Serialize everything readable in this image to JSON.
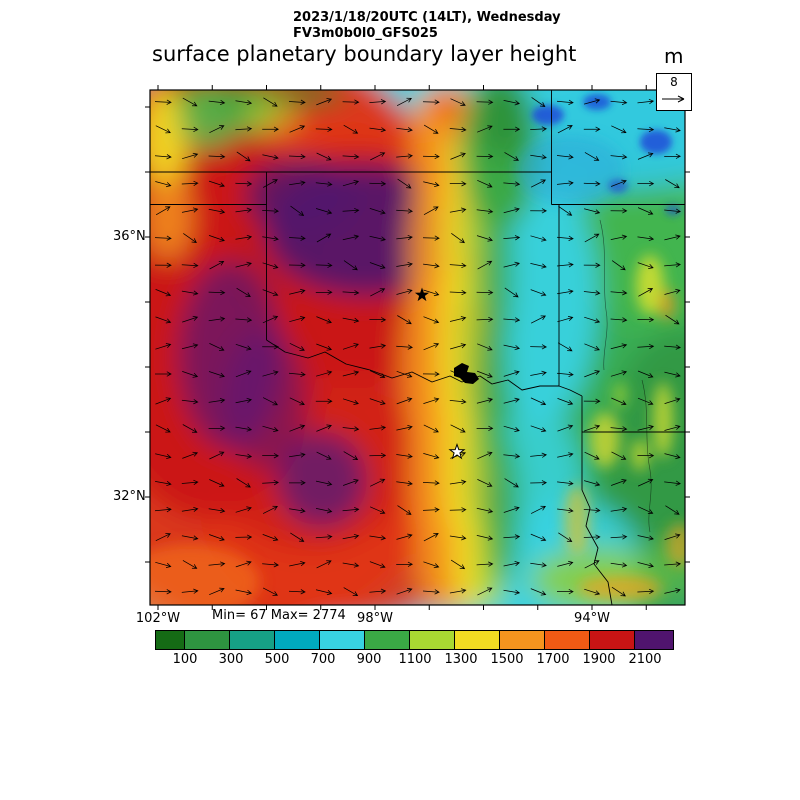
{
  "header": {
    "datetime_line": "2023/1/18/20UTC (14LT), Wednesday",
    "model_line": "FV3m0b0l0_GFS025",
    "title": "surface planetary boundary layer height",
    "units": "m"
  },
  "reference_vector": {
    "value": "8",
    "icon": "right-arrow-icon"
  },
  "axes": {
    "lat_labels": [
      {
        "text": "36°N"
      },
      {
        "text": "32°N"
      }
    ],
    "lon_labels": [
      {
        "text": "102°W"
      },
      {
        "text": "98°W"
      },
      {
        "text": "94°W"
      }
    ]
  },
  "stats": {
    "min_max": "Min= 67 Max= 2774"
  },
  "colorbar": {
    "labels": [
      "100",
      "300",
      "500",
      "700",
      "900",
      "1100",
      "1300",
      "1500",
      "1700",
      "1900",
      "2100"
    ],
    "colors": [
      "#156b15",
      "#2e9440",
      "#16a085",
      "#00aabe",
      "#38d2e2",
      "#3aa845",
      "#a8d832",
      "#f2dc22",
      "#f5941e",
      "#f05a14",
      "#c81414",
      "#50146e"
    ]
  },
  "chart_data": {
    "type": "heatmap",
    "title": "surface planetary boundary layer height",
    "units": "m",
    "datetime": "2023/1/18/20UTC (14LT), Wednesday",
    "model": "FV3m0b0l0_GFS025",
    "stat_min": 67,
    "stat_max": 2774,
    "contour_levels": [
      100,
      300,
      500,
      700,
      900,
      1100,
      1300,
      1500,
      1700,
      1900,
      2100
    ],
    "level_colors": [
      "#156b15",
      "#2e9440",
      "#16a085",
      "#00aabe",
      "#38d2e2",
      "#3aa845",
      "#a8d832",
      "#f2dc22",
      "#f5941e",
      "#f05a14",
      "#c81414",
      "#50146e"
    ],
    "x_ticks": [
      "102°W",
      "98°W",
      "94°W"
    ],
    "y_ticks": [
      "36°N",
      "32°N"
    ],
    "reference_vector": 8,
    "overlays": [
      "wind vector arrows across whole map",
      "state borders (TX, OK, KS, MO, AR, LA)",
      "Red River and Sabine River",
      "Lake Texoma (black water body)",
      "two star markers (central OK and north TX)"
    ],
    "field_summary": [
      {
        "region": "west Texas / TX panhandle / western Oklahoma",
        "pblh_m": "2100-2774 (purple maxima embedded in dark red)"
      },
      {
        "region": "northwest-central Texas and central Oklahoma",
        "pblh_m": "1500-2100 (orange to red)"
      },
      {
        "region": "north-south transition band near 97-98W",
        "pblh_m": "900-1500 (green-yellow-orange gradient)"
      },
      {
        "region": "eastern Oklahoma / east Texas / Arkansas border",
        "pblh_m": "300-1100 (cyan and green)"
      },
      {
        "region": "far northeast corner (Missouri/Arkansas)",
        "pblh_m": "67-300 (dark blue minima spots in cyan)"
      }
    ],
    "legend_position": "horizontal colorbar at bottom",
    "grid": false
  }
}
